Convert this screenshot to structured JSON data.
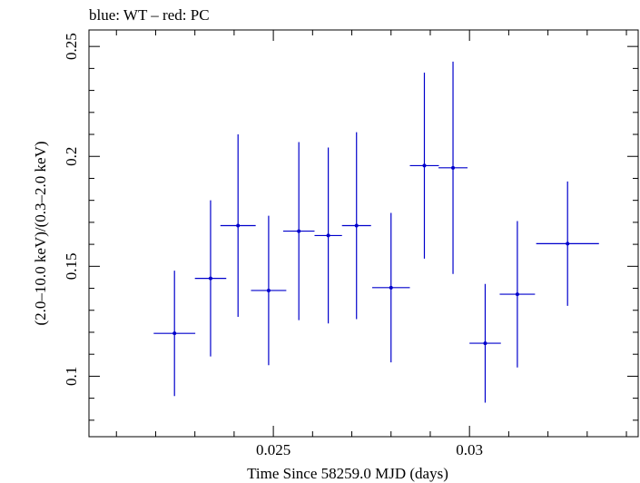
{
  "chart_data": {
    "type": "scatter",
    "title": "blue: WT – red: PC",
    "xlabel": "Time Since 58259.0 MJD (days)",
    "ylabel": "(2.0–10.0 keV)/(0.3–2.0 keV)",
    "xlim": [
      0.0203,
      0.0343
    ],
    "ylim": [
      0.0725,
      0.2575
    ],
    "x_major_ticks": [
      0.025,
      0.03
    ],
    "x_tick_labels": [
      "0.025",
      "0.03"
    ],
    "y_major_ticks": [
      0.1,
      0.15,
      0.2,
      0.25
    ],
    "y_tick_labels": [
      "0.1",
      "0.15",
      "0.2",
      "0.25"
    ],
    "grid": false,
    "series": [
      {
        "color": "#0000cc",
        "points": [
          {
            "x": 0.02248,
            "xerr": 0.00053,
            "y": 0.1195,
            "yerr_low": 0.0285,
            "yerr_high": 0.0285
          },
          {
            "x": 0.0234,
            "xerr": 0.0004,
            "y": 0.1445,
            "yerr_low": 0.0355,
            "yerr_high": 0.0355
          },
          {
            "x": 0.0241,
            "xerr": 0.00045,
            "y": 0.1685,
            "yerr_low": 0.0415,
            "yerr_high": 0.0415
          },
          {
            "x": 0.02488,
            "xerr": 0.00045,
            "y": 0.139,
            "yerr_low": 0.034,
            "yerr_high": 0.034
          },
          {
            "x": 0.02565,
            "xerr": 0.0004,
            "y": 0.166,
            "yerr_low": 0.0405,
            "yerr_high": 0.0405
          },
          {
            "x": 0.0264,
            "xerr": 0.00035,
            "y": 0.164,
            "yerr_low": 0.04,
            "yerr_high": 0.04
          },
          {
            "x": 0.02712,
            "xerr": 0.00037,
            "y": 0.1685,
            "yerr_low": 0.0425,
            "yerr_high": 0.0425
          },
          {
            "x": 0.028,
            "xerr": 0.00048,
            "y": 0.1403,
            "yerr_low": 0.034,
            "yerr_high": 0.034
          },
          {
            "x": 0.02885,
            "xerr": 0.00037,
            "y": 0.1958,
            "yerr_low": 0.0423,
            "yerr_high": 0.0423
          },
          {
            "x": 0.02958,
            "xerr": 0.00037,
            "y": 0.1948,
            "yerr_low": 0.0483,
            "yerr_high": 0.0483
          },
          {
            "x": 0.0304,
            "xerr": 0.0004,
            "y": 0.115,
            "yerr_low": 0.027,
            "yerr_high": 0.027
          },
          {
            "x": 0.03122,
            "xerr": 0.00045,
            "y": 0.1373,
            "yerr_low": 0.0333,
            "yerr_high": 0.0333
          },
          {
            "x": 0.0325,
            "xerr": 0.0008,
            "y": 0.1603,
            "yerr_low": 0.0283,
            "yerr_high": 0.0283
          }
        ]
      }
    ]
  }
}
